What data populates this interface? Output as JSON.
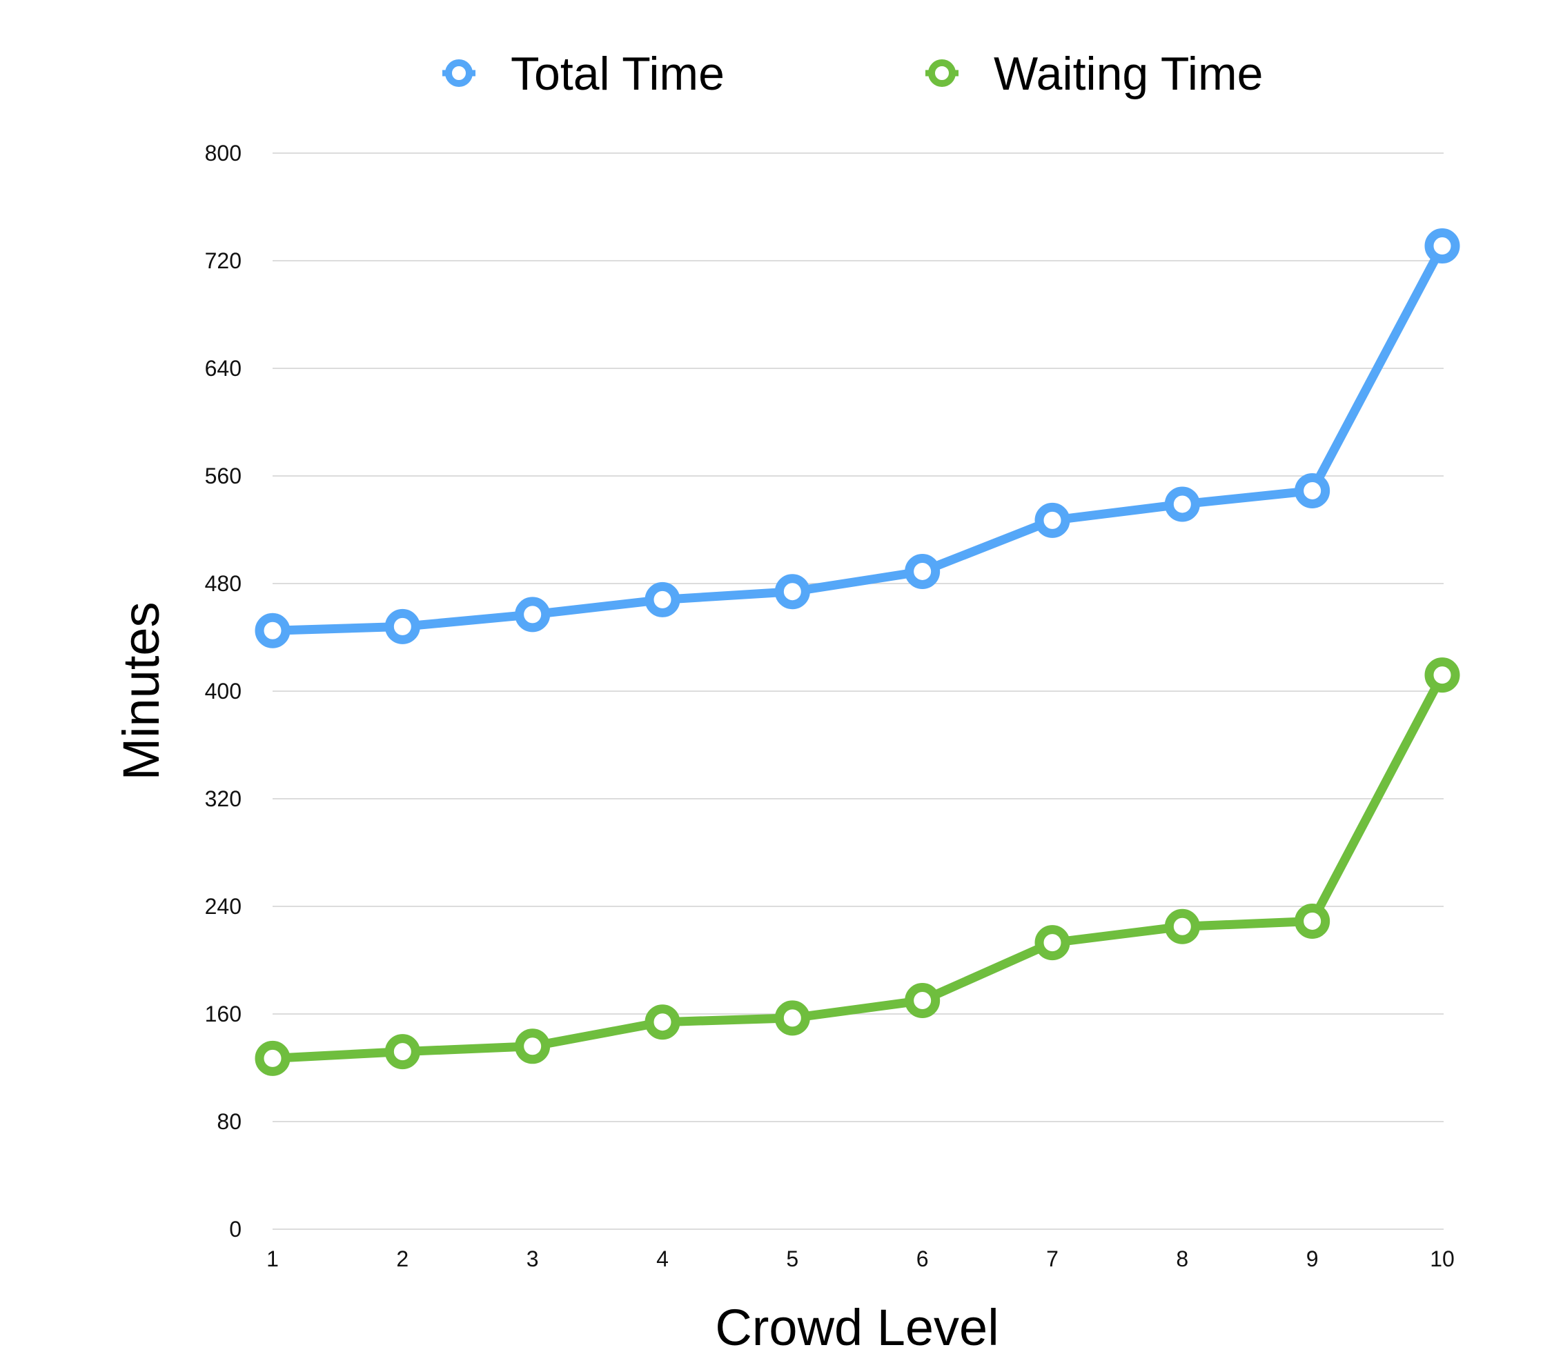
{
  "chart_data": {
    "type": "line",
    "title": "",
    "xlabel": "Crowd Level",
    "ylabel": "Minutes",
    "x": [
      1,
      2,
      3,
      4,
      5,
      6,
      7,
      8,
      9,
      10
    ],
    "xtick_labels": [
      "1",
      "2",
      "3",
      "4",
      "5",
      "6",
      "7",
      "8",
      "9",
      "10"
    ],
    "ylim": [
      0,
      800
    ],
    "ytick_labels": [
      "0",
      "80",
      "160",
      "240",
      "320",
      "400",
      "480",
      "560",
      "640",
      "720",
      "800"
    ],
    "grid": true,
    "legend_position": "top",
    "series": [
      {
        "name": "Total Time",
        "color": "#55a7f8",
        "values": [
          445,
          448,
          457,
          468,
          474,
          489,
          527,
          539,
          549,
          731
        ]
      },
      {
        "name": "Waiting Time",
        "color": "#6fbe3e",
        "values": [
          127,
          132,
          136,
          154,
          157,
          170,
          213,
          225,
          229,
          412
        ]
      }
    ]
  }
}
